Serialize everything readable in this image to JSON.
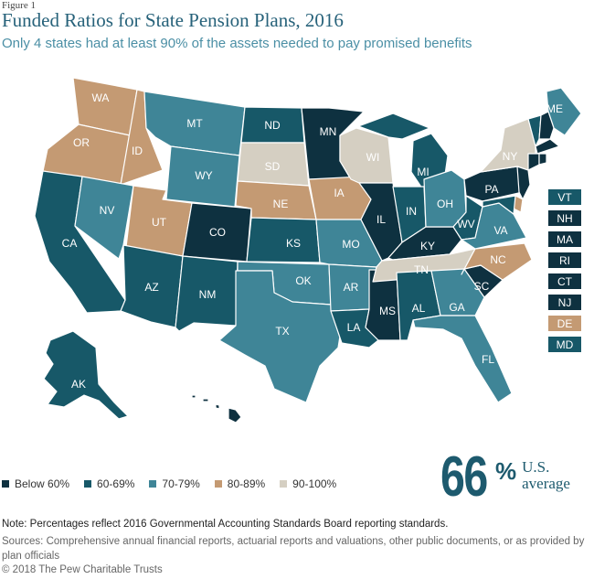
{
  "header": {
    "figure_label": "Figure 1",
    "title": "Funded Ratios for State Pension Plans, 2016",
    "subtitle": "Only 4 states had at least 90% of the assets needed to pay promised benefits"
  },
  "colors": {
    "below_60": "#0e3140",
    "r60_69": "#175868",
    "r70_79": "#3f8597",
    "r80_89": "#c49a73",
    "r90_100": "#d5cfc2",
    "border": "#ffffff"
  },
  "legend": [
    {
      "label": "Below 60%",
      "cat": "below_60"
    },
    {
      "label": "60-69%",
      "cat": "r60_69"
    },
    {
      "label": "70-79%",
      "cat": "r70_79"
    },
    {
      "label": "80-89%",
      "cat": "r80_89"
    },
    {
      "label": "90-100%",
      "cat": "r90_100"
    }
  ],
  "states": [
    {
      "code": "WA",
      "cat": "r80_89"
    },
    {
      "code": "OR",
      "cat": "r80_89"
    },
    {
      "code": "CA",
      "cat": "r60_69"
    },
    {
      "code": "ID",
      "cat": "r80_89"
    },
    {
      "code": "NV",
      "cat": "r70_79"
    },
    {
      "code": "MT",
      "cat": "r70_79"
    },
    {
      "code": "WY",
      "cat": "r70_79"
    },
    {
      "code": "UT",
      "cat": "r80_89"
    },
    {
      "code": "AZ",
      "cat": "r60_69"
    },
    {
      "code": "CO",
      "cat": "below_60"
    },
    {
      "code": "NM",
      "cat": "r60_69"
    },
    {
      "code": "ND",
      "cat": "r60_69"
    },
    {
      "code": "SD",
      "cat": "r90_100"
    },
    {
      "code": "NE",
      "cat": "r80_89"
    },
    {
      "code": "KS",
      "cat": "r60_69"
    },
    {
      "code": "OK",
      "cat": "r70_79"
    },
    {
      "code": "TX",
      "cat": "r70_79"
    },
    {
      "code": "MN",
      "cat": "below_60"
    },
    {
      "code": "IA",
      "cat": "r80_89"
    },
    {
      "code": "MO",
      "cat": "r70_79"
    },
    {
      "code": "AR",
      "cat": "r70_79"
    },
    {
      "code": "LA",
      "cat": "r60_69"
    },
    {
      "code": "WI",
      "cat": "r90_100"
    },
    {
      "code": "IL",
      "cat": "below_60"
    },
    {
      "code": "MS",
      "cat": "below_60"
    },
    {
      "code": "MI",
      "cat": "r60_69"
    },
    {
      "code": "IN",
      "cat": "r60_69"
    },
    {
      "code": "KY",
      "cat": "below_60"
    },
    {
      "code": "TN",
      "cat": "r90_100"
    },
    {
      "code": "AL",
      "cat": "r60_69"
    },
    {
      "code": "OH",
      "cat": "r70_79"
    },
    {
      "code": "WV",
      "cat": "r60_69"
    },
    {
      "code": "GA",
      "cat": "r70_79"
    },
    {
      "code": "FL",
      "cat": "r70_79"
    },
    {
      "code": "SC",
      "cat": "below_60"
    },
    {
      "code": "NC",
      "cat": "r80_89"
    },
    {
      "code": "VA",
      "cat": "r70_79"
    },
    {
      "code": "PA",
      "cat": "below_60"
    },
    {
      "code": "NY",
      "cat": "r90_100"
    },
    {
      "code": "ME",
      "cat": "r70_79"
    },
    {
      "code": "AK",
      "cat": "r60_69"
    },
    {
      "code": "HI",
      "cat": "below_60"
    },
    {
      "code": "NJ",
      "cat": "below_60"
    },
    {
      "code": "VT",
      "cat": "r60_69"
    },
    {
      "code": "NH",
      "cat": "below_60"
    },
    {
      "code": "MA",
      "cat": "below_60"
    },
    {
      "code": "RI",
      "cat": "below_60"
    },
    {
      "code": "CT",
      "cat": "below_60"
    },
    {
      "code": "DE",
      "cat": "r80_89"
    },
    {
      "code": "MD",
      "cat": "r60_69"
    }
  ],
  "small_states": [
    {
      "code": "VT",
      "cat": "r60_69"
    },
    {
      "code": "NH",
      "cat": "below_60"
    },
    {
      "code": "MA",
      "cat": "below_60"
    },
    {
      "code": "RI",
      "cat": "below_60"
    },
    {
      "code": "CT",
      "cat": "below_60"
    },
    {
      "code": "NJ",
      "cat": "below_60"
    },
    {
      "code": "DE",
      "cat": "r80_89"
    },
    {
      "code": "MD",
      "cat": "r60_69"
    }
  ],
  "average": {
    "number": "66",
    "percent": "%",
    "label_line1": "U.S.",
    "label_line2": "average"
  },
  "footer": {
    "note": "Note: Percentages reflect 2016 Governmental Accounting Standards Board reporting standards.",
    "sources": "Sources: Comprehensive annual financial reports, actuarial reports and valuations, other public documents, or as provided by plan officials",
    "copyright": "© 2018 The Pew Charitable Trusts"
  }
}
